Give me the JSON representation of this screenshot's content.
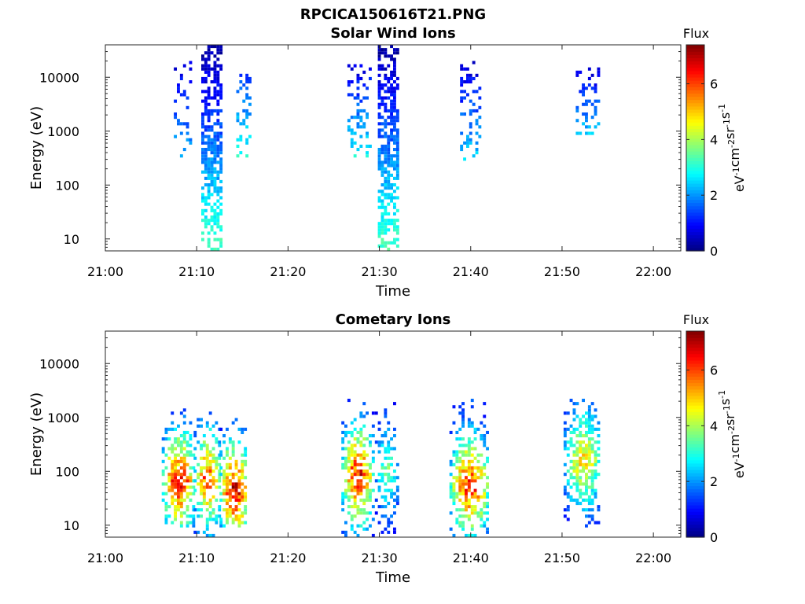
{
  "figure": {
    "title": "RPCICA150616T21.PNG"
  },
  "chart_data": [
    {
      "type": "heatmap",
      "title": "Solar Wind Ions",
      "xlabel": "Time",
      "ylabel": "Energy (eV)",
      "x_ticks": [
        "21:00",
        "21:10",
        "21:20",
        "21:30",
        "21:40",
        "21:50",
        "22:00"
      ],
      "xlim": [
        "21:00",
        "22:03"
      ],
      "y_scale": "log",
      "y_ticks": [
        "10",
        "100",
        "1000",
        "10000"
      ],
      "ylim": [
        6,
        40000
      ],
      "colorbar": {
        "title": "Flux",
        "label": "eV-1cm-2sr-1s-1",
        "ticks": [
          "0",
          "2",
          "4",
          "6"
        ],
        "range": [
          0,
          7.4
        ],
        "colormap": "jet"
      },
      "bursts": [
        {
          "t_start": "21:07:30",
          "t_end": "21:09:30",
          "e_min": 300,
          "e_max": 25000,
          "flux_min": 0.5,
          "flux_max": 2.2,
          "density": 0.25
        },
        {
          "t_start": "21:10:30",
          "t_end": "21:12:40",
          "e_min": 6,
          "e_max": 40000,
          "flux_min": 0.2,
          "flux_max": 3.3,
          "density": 0.7
        },
        {
          "t_start": "21:14:20",
          "t_end": "21:15:50",
          "e_min": 300,
          "e_max": 12000,
          "flux_min": 1.2,
          "flux_max": 3.0,
          "density": 0.35
        },
        {
          "t_start": "21:26:30",
          "t_end": "21:28:50",
          "e_min": 250,
          "e_max": 20000,
          "flux_min": 0.5,
          "flux_max": 3.0,
          "density": 0.25
        },
        {
          "t_start": "21:29:50",
          "t_end": "21:32:00",
          "e_min": 6,
          "e_max": 40000,
          "flux_min": 0.2,
          "flux_max": 3.3,
          "density": 0.7
        },
        {
          "t_start": "21:38:50",
          "t_end": "21:41:10",
          "e_min": 250,
          "e_max": 20000,
          "flux_min": 0.5,
          "flux_max": 2.5,
          "density": 0.3
        },
        {
          "t_start": "21:51:30",
          "t_end": "21:54:00",
          "e_min": 700,
          "e_max": 14000,
          "flux_min": 0.5,
          "flux_max": 2.5,
          "density": 0.35
        }
      ]
    },
    {
      "type": "heatmap",
      "title": "Cometary Ions",
      "xlabel": "Time",
      "ylabel": "Energy (eV)",
      "x_ticks": [
        "21:00",
        "21:10",
        "21:20",
        "21:30",
        "21:40",
        "21:50",
        "22:00"
      ],
      "xlim": [
        "21:00",
        "22:03"
      ],
      "y_scale": "log",
      "y_ticks": [
        "10",
        "100",
        "1000",
        "10000"
      ],
      "ylim": [
        6,
        40000
      ],
      "colorbar": {
        "title": "Flux",
        "label": "eV-1cm-2sr-1s-1",
        "ticks": [
          "0",
          "2",
          "4",
          "6"
        ],
        "range": [
          0,
          7.4
        ],
        "colormap": "jet"
      },
      "bursts": [
        {
          "t_start": "21:06:10",
          "t_end": "21:09:40",
          "e_min": 8,
          "e_max": 1500,
          "peak_energy": 60,
          "peak_flux": 6.8,
          "density": 0.8
        },
        {
          "t_start": "21:09:40",
          "t_end": "21:12:30",
          "e_min": 6,
          "e_max": 1200,
          "peak_energy": 70,
          "peak_flux": 6.2,
          "density": 0.75
        },
        {
          "t_start": "21:12:30",
          "t_end": "21:15:30",
          "e_min": 8,
          "e_max": 1200,
          "peak_energy": 40,
          "peak_flux": 7.3,
          "density": 0.8
        },
        {
          "t_start": "21:25:50",
          "t_end": "21:29:10",
          "e_min": 6,
          "e_max": 2000,
          "peak_energy": 80,
          "peak_flux": 6.8,
          "density": 0.8
        },
        {
          "t_start": "21:29:30",
          "t_end": "21:32:00",
          "e_min": 6,
          "e_max": 2000,
          "peak_energy": 100,
          "peak_flux": 3.8,
          "density": 0.55
        },
        {
          "t_start": "21:37:40",
          "t_end": "21:41:50",
          "e_min": 6,
          "e_max": 2000,
          "peak_energy": 50,
          "peak_flux": 6.6,
          "density": 0.8
        },
        {
          "t_start": "21:50:10",
          "t_end": "21:54:10",
          "e_min": 8,
          "e_max": 2000,
          "peak_energy": 150,
          "peak_flux": 5.2,
          "density": 0.8
        }
      ]
    }
  ]
}
